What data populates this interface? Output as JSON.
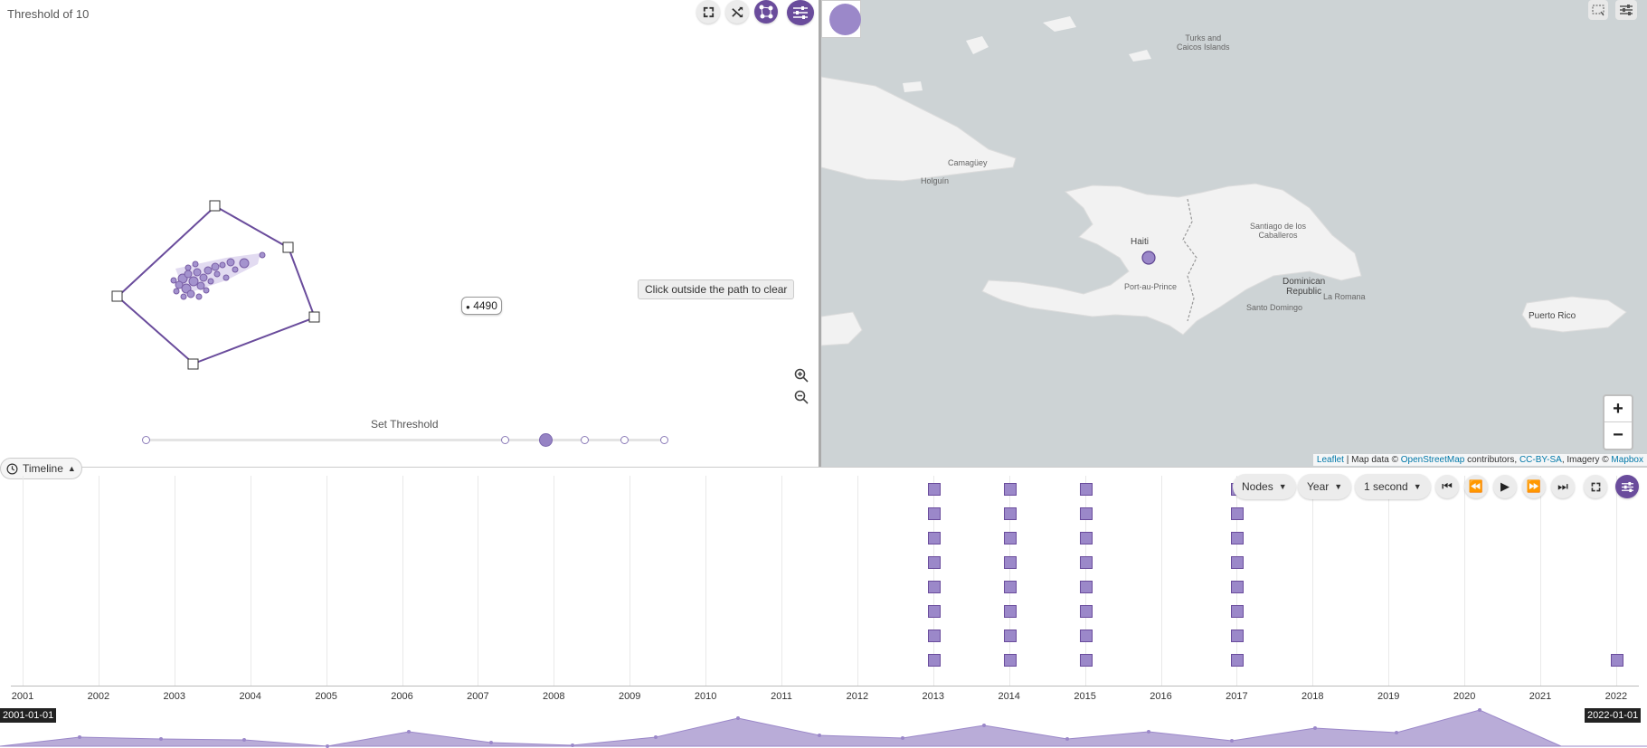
{
  "graph": {
    "title": "Threshold of 10",
    "toolbar": [
      "fullscreen-icon",
      "shuffle-icon",
      "network-icon",
      "sliders-icon"
    ],
    "clear_hint": "Click outside the path to clear",
    "node_label": "4490",
    "threshold_label": "Set Threshold"
  },
  "map": {
    "labels": {
      "turks": "Turks and",
      "caicos": "Caicos Islands",
      "haiti": "Haiti",
      "dominican": "Dominican",
      "republic": "Republic",
      "puerto_rico": "Puerto Rico",
      "santiago": "Santiago de los Caballeros",
      "port_au_prince": "Port-au-Prince",
      "camaguey": "Camagüey",
      "holguin": "Holguín",
      "santo_domingo": "Santo Domingo",
      "la_romana": "La Romana"
    },
    "zoom_in": "+",
    "zoom_out": "−",
    "attribution": {
      "leaflet": "Leaflet",
      "sep1": " | Map data © ",
      "osm": "OpenStreetMap",
      "contrib": " contributors, ",
      "ccbysa": "CC-BY-SA",
      "imagery": ", Imagery © ",
      "mapbox": "Mapbox"
    }
  },
  "timeline": {
    "toggle_label": "Timeline",
    "mode_select": "Nodes",
    "unit_select": "Year",
    "speed_select": "1 second",
    "years": [
      "2001",
      "2002",
      "2003",
      "2004",
      "2005",
      "2006",
      "2007",
      "2008",
      "2009",
      "2010",
      "2011",
      "2012",
      "2013",
      "2014",
      "2015",
      "2016",
      "2017",
      "2018",
      "2019",
      "2020",
      "2021",
      "2022"
    ],
    "range_start": "2001-01-01",
    "range_end": "2022-01-01",
    "events": [
      {
        "year": "2013",
        "count": 8
      },
      {
        "year": "2014",
        "count": 8
      },
      {
        "year": "2015",
        "count": 8
      },
      {
        "year": "2017",
        "count": 8
      },
      {
        "year": "2022",
        "count": 1
      }
    ]
  },
  "colors": {
    "accent": "#6a4c9c",
    "node_fill": "#9b88c9",
    "map_water": "#cdd3d5",
    "map_land": "#f2f2f2"
  }
}
